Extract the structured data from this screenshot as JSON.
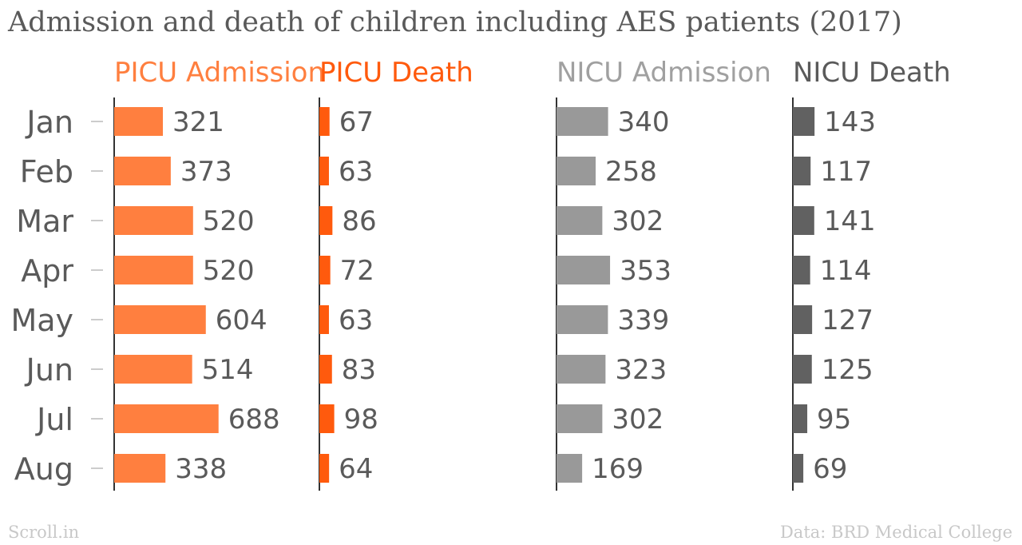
{
  "title": "Admission and death of children including AES patients (2017)",
  "footer": {
    "source_site": "Scroll.in",
    "credit": "Data: BRD Medical College"
  },
  "colors": {
    "title": "#5a5a5a",
    "month_label": "#5a5a5a",
    "value_label": "#5a5a5a",
    "axis": "#333333",
    "tick": "#bbbbbb",
    "footer": "#c8c8c8"
  },
  "chart_data": {
    "type": "bar",
    "orientation": "horizontal",
    "layout": "small-multiples",
    "title": "Admission and death of children including AES patients (2017)",
    "categories": [
      "Jan",
      "Feb",
      "Mar",
      "Apr",
      "May",
      "Jun",
      "Jul",
      "Aug"
    ],
    "series": [
      {
        "name": "PICU Admission",
        "color": "#ff7f3f",
        "header_color": "#ff7f3f",
        "values": [
          321,
          373,
          520,
          520,
          604,
          514,
          688,
          338
        ]
      },
      {
        "name": "PICU Death",
        "color": "#ff5a0d",
        "header_color": "#ff5a0d",
        "values": [
          67,
          63,
          86,
          72,
          63,
          83,
          98,
          64
        ]
      },
      {
        "name": "NICU Admission",
        "color": "#999999",
        "header_color": "#a0a0a0",
        "values": [
          340,
          258,
          302,
          353,
          339,
          323,
          302,
          169
        ]
      },
      {
        "name": "NICU Death",
        "color": "#616161",
        "header_color": "#5a5a5a",
        "values": [
          143,
          117,
          141,
          114,
          127,
          125,
          95,
          69
        ]
      }
    ],
    "xlim": [
      0,
      1000
    ],
    "grid": false,
    "legend": "column-headers"
  }
}
